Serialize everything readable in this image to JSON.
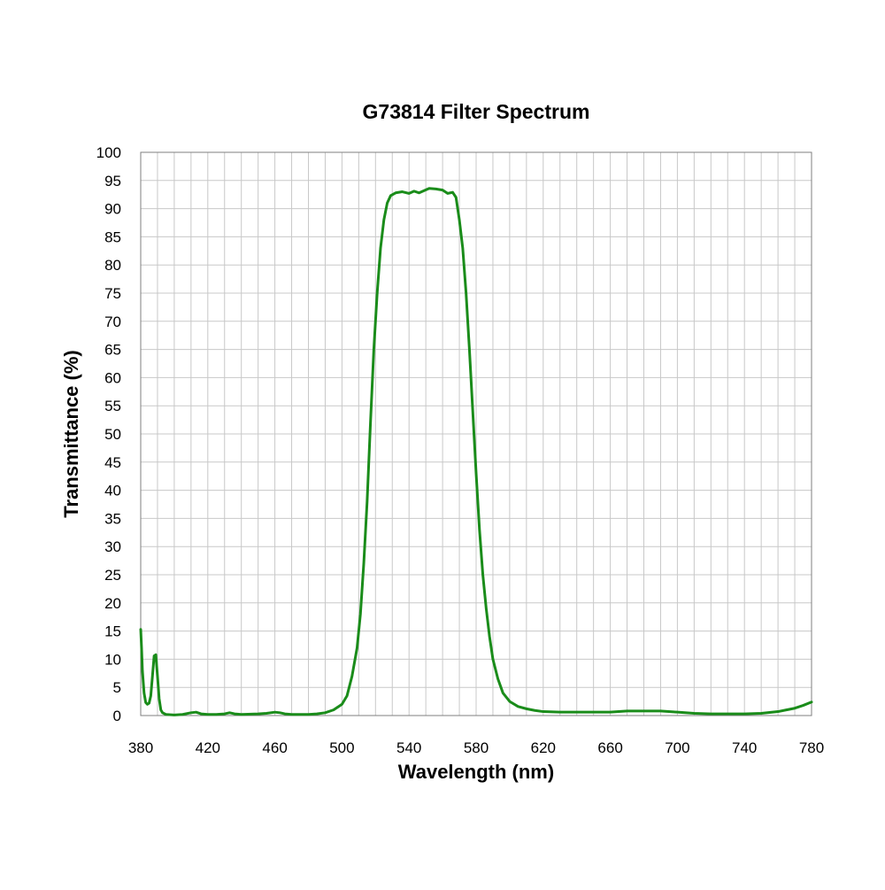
{
  "chart_data": {
    "type": "line",
    "title": "G73814 Filter Spectrum",
    "xlabel": "Wavelength (nm)",
    "ylabel": "Transmittance (%)",
    "xlim": [
      380,
      780
    ],
    "ylim": [
      0,
      100
    ],
    "x_ticks": [
      "380",
      "420",
      "460",
      "500",
      "540",
      "580",
      "620",
      "660",
      "700",
      "740",
      "780"
    ],
    "y_ticks": [
      "0",
      "5",
      "10",
      "15",
      "20",
      "25",
      "30",
      "35",
      "40",
      "45",
      "50",
      "55",
      "60",
      "65",
      "70",
      "75",
      "80",
      "85",
      "90",
      "95",
      "100"
    ],
    "grid": true,
    "legend": "none",
    "series": [
      {
        "color": "#1a8c1a",
        "points": [
          [
            380,
            15.3
          ],
          [
            380.5,
            12
          ],
          [
            381,
            8
          ],
          [
            382,
            4
          ],
          [
            383,
            2.3
          ],
          [
            384,
            2.0
          ],
          [
            385,
            2.2
          ],
          [
            386,
            3.5
          ],
          [
            387,
            7
          ],
          [
            388,
            10.6
          ],
          [
            389,
            10.8
          ],
          [
            390,
            7
          ],
          [
            391,
            3
          ],
          [
            392,
            1
          ],
          [
            393,
            0.5
          ],
          [
            395,
            0.2
          ],
          [
            400,
            0.1
          ],
          [
            405,
            0.2
          ],
          [
            410,
            0.5
          ],
          [
            413,
            0.6
          ],
          [
            416,
            0.3
          ],
          [
            420,
            0.2
          ],
          [
            425,
            0.2
          ],
          [
            430,
            0.3
          ],
          [
            433,
            0.5
          ],
          [
            436,
            0.3
          ],
          [
            440,
            0.2
          ],
          [
            450,
            0.3
          ],
          [
            455,
            0.4
          ],
          [
            460,
            0.6
          ],
          [
            463,
            0.5
          ],
          [
            466,
            0.3
          ],
          [
            470,
            0.2
          ],
          [
            480,
            0.2
          ],
          [
            485,
            0.3
          ],
          [
            490,
            0.5
          ],
          [
            495,
            1.0
          ],
          [
            500,
            2.0
          ],
          [
            503,
            3.5
          ],
          [
            506,
            7
          ],
          [
            509,
            12
          ],
          [
            511,
            18
          ],
          [
            513,
            27
          ],
          [
            515,
            38
          ],
          [
            517,
            52
          ],
          [
            519,
            65
          ],
          [
            521,
            75
          ],
          [
            523,
            83
          ],
          [
            525,
            88
          ],
          [
            527,
            91
          ],
          [
            529,
            92.3
          ],
          [
            532,
            92.8
          ],
          [
            536,
            93.0
          ],
          [
            540,
            92.7
          ],
          [
            543,
            93.1
          ],
          [
            546,
            92.8
          ],
          [
            549,
            93.2
          ],
          [
            552,
            93.6
          ],
          [
            556,
            93.5
          ],
          [
            560,
            93.3
          ],
          [
            563,
            92.7
          ],
          [
            566,
            92.9
          ],
          [
            568,
            92.0
          ],
          [
            570,
            88
          ],
          [
            572,
            83
          ],
          [
            574,
            75
          ],
          [
            576,
            65
          ],
          [
            578,
            54
          ],
          [
            580,
            43
          ],
          [
            582,
            33
          ],
          [
            584,
            25
          ],
          [
            586,
            19
          ],
          [
            588,
            14
          ],
          [
            590,
            10
          ],
          [
            593,
            6.5
          ],
          [
            596,
            4
          ],
          [
            600,
            2.5
          ],
          [
            605,
            1.6
          ],
          [
            610,
            1.2
          ],
          [
            615,
            0.9
          ],
          [
            620,
            0.7
          ],
          [
            630,
            0.6
          ],
          [
            640,
            0.6
          ],
          [
            650,
            0.6
          ],
          [
            660,
            0.6
          ],
          [
            670,
            0.8
          ],
          [
            680,
            0.8
          ],
          [
            690,
            0.8
          ],
          [
            700,
            0.6
          ],
          [
            710,
            0.4
          ],
          [
            720,
            0.3
          ],
          [
            730,
            0.3
          ],
          [
            740,
            0.3
          ],
          [
            750,
            0.4
          ],
          [
            760,
            0.7
          ],
          [
            765,
            1.0
          ],
          [
            770,
            1.3
          ],
          [
            775,
            1.8
          ],
          [
            780,
            2.4
          ]
        ]
      }
    ]
  }
}
